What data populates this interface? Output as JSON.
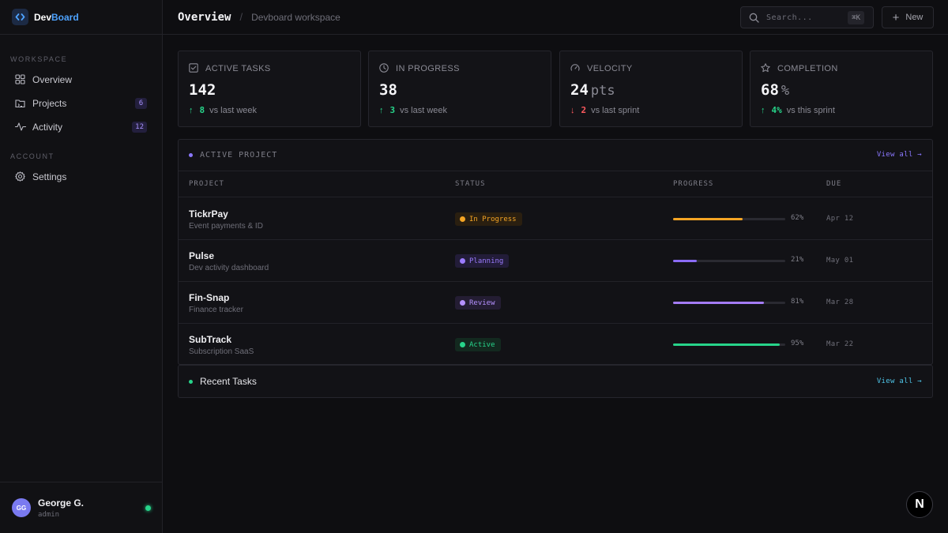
{
  "brand": {
    "name_prefix": "Dev",
    "name_suffix": "Board",
    "accent": "#4ea3ff"
  },
  "sidebar": {
    "sections": [
      {
        "label": "WORKSPACE"
      },
      {
        "label": "ACCOUNT"
      }
    ],
    "items": [
      {
        "label": "Overview",
        "icon": "grid-icon"
      },
      {
        "label": "Projects",
        "icon": "folder-icon",
        "badge": "6"
      },
      {
        "label": "Activity",
        "icon": "activity-icon",
        "badge": "12"
      },
      {
        "label": "Settings",
        "icon": "gear-icon"
      }
    ]
  },
  "user": {
    "initials": "GG",
    "name": "George G.",
    "role": "admin",
    "status_color": "#27d48a"
  },
  "header": {
    "title": "Overview",
    "breadcrumb": "Devboard workspace",
    "search_placeholder": "Search...",
    "search_shortcut": "⌘K",
    "new_label": "New"
  },
  "stats": [
    {
      "label": "ACTIVE TASKS",
      "icon": "checkbox-icon",
      "value": "142",
      "unit": "",
      "delta_arrow": "↑",
      "delta": "8",
      "delta_dir": "up",
      "delta_text": "vs last week"
    },
    {
      "label": "IN PROGRESS",
      "icon": "clock-icon",
      "value": "38",
      "unit": "",
      "delta_arrow": "↑",
      "delta": "3",
      "delta_dir": "up",
      "delta_text": "vs last week"
    },
    {
      "label": "VELOCITY",
      "icon": "gauge-icon",
      "value": "24",
      "unit": "pts",
      "delta_arrow": "↓",
      "delta": "2",
      "delta_dir": "down",
      "delta_text": "vs last sprint"
    },
    {
      "label": "COMPLETION",
      "icon": "star-icon",
      "value": "68",
      "unit": "%",
      "delta_arrow": "↑",
      "delta": "4%",
      "delta_dir": "up",
      "delta_text": "vs this sprint"
    }
  ],
  "projects_panel": {
    "title": "ACTIVE PROJECT",
    "view_all": "View all →",
    "columns": [
      "PROJECT",
      "STATUS",
      "PROGRESS",
      "DUE"
    ],
    "rows": [
      {
        "name": "TickrPay",
        "desc": "Event payments & ID",
        "status": "In Progress",
        "status_color": "#f5a524",
        "status_bg": "#2a1f10",
        "progress": 62,
        "progress_label": "62%",
        "bar_color": "#f5a524",
        "due": "Apr 12"
      },
      {
        "name": "Pulse",
        "desc": "Dev activity dashboard",
        "status": "Planning",
        "status_color": "#9b7bff",
        "status_bg": "#221c38",
        "progress": 21,
        "progress_label": "21%",
        "bar_color": "#8b6cf5",
        "due": "May 01"
      },
      {
        "name": "Fin-Snap",
        "desc": "Finance tracker",
        "status": "Review",
        "status_color": "#b591ff",
        "status_bg": "#241d33",
        "progress": 81,
        "progress_label": "81%",
        "bar_color": "#a47cf7",
        "due": "Mar 28"
      },
      {
        "name": "SubTrack",
        "desc": "Subscription SaaS",
        "status": "Active",
        "status_color": "#27d48a",
        "status_bg": "#13291f",
        "progress": 95,
        "progress_label": "95%",
        "bar_color": "#27d48a",
        "due": "Mar 22"
      }
    ]
  },
  "tasks_panel": {
    "title": "Recent Tasks",
    "view_all": "View all →"
  },
  "fab_label": "N"
}
